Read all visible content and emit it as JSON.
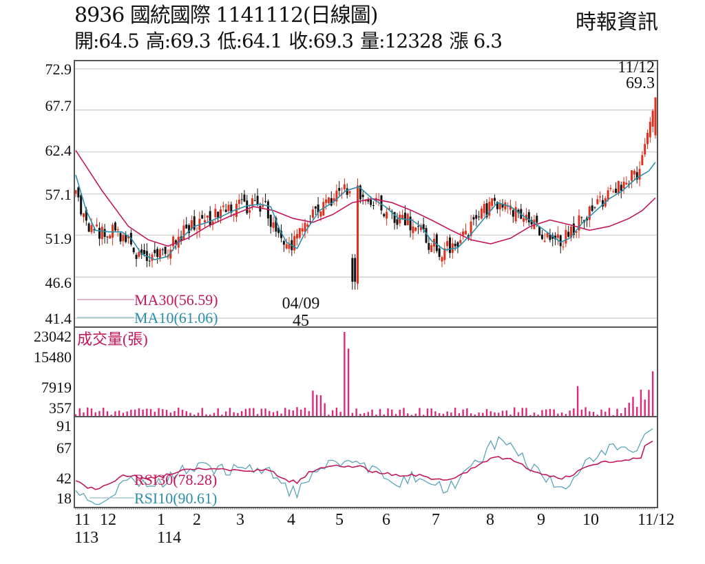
{
  "header": {
    "code": "8936",
    "name": "國統國際",
    "date": "1141112",
    "chart_kind": "(日線圖)",
    "title": "8936  國統國際 1141112(日線圖)",
    "brand": "時報資訊",
    "quote": {
      "open": "開:64.5",
      "high": "高:69.3",
      "low": "低:64.1",
      "close": "收:69.3",
      "volume": "量:12328",
      "change": "漲 6.3"
    }
  },
  "annotations": {
    "last_date": "11/12",
    "last_price": "69.3",
    "low_date": "04/09",
    "low_price": "45"
  },
  "legends": {
    "ma30": "MA30(56.59)",
    "ma10": "MA10(61.06)",
    "volume": "成交量(張)",
    "rsi30": "RSI30(78.28)",
    "rsi10": "RSI10(90.61)"
  },
  "colors": {
    "up": "#e0301e",
    "down": "#111111",
    "ma30": "#c2185b",
    "ma10": "#2a8fa8",
    "volume": "#e0287a",
    "grid": "#cccccc",
    "axis": "#555555"
  },
  "chart_data": [
    {
      "type": "candlestick",
      "title": "8936 國統國際 1141112(日線圖)",
      "ylabel": "",
      "yticks": [
        72.9,
        67.7,
        62.4,
        57.1,
        51.9,
        46.6,
        41.4
      ],
      "ylim": [
        41.4,
        72.9
      ],
      "grid": true,
      "last": {
        "date": "11/12",
        "open": 64.5,
        "high": 69.3,
        "low": 64.1,
        "close": 69.3,
        "volume": 12328,
        "change": 6.3
      },
      "period_low": {
        "date": "04/09",
        "value": 45
      },
      "series": [
        {
          "name": "MA30",
          "last": 56.59,
          "points": [
            [
              0,
              62.6
            ],
            [
              20,
              57.5
            ],
            [
              40,
              53.0
            ],
            [
              55,
              51.3
            ],
            [
              70,
              50.5
            ],
            [
              85,
              51.5
            ],
            [
              100,
              53.0
            ],
            [
              120,
              54.5
            ],
            [
              135,
              55.5
            ],
            [
              150,
              55.0
            ],
            [
              165,
              54.0
            ],
            [
              180,
              53.5
            ],
            [
              195,
              54.5
            ],
            [
              210,
              56.0
            ],
            [
              225,
              56.5
            ],
            [
              240,
              56.0
            ],
            [
              255,
              55.0
            ],
            [
              270,
              53.8
            ],
            [
              285,
              52.5
            ],
            [
              300,
              51.3
            ],
            [
              315,
              50.8
            ],
            [
              330,
              51.5
            ],
            [
              345,
              53.0
            ],
            [
              360,
              53.8
            ],
            [
              375,
              53.2
            ],
            [
              390,
              52.5
            ],
            [
              405,
              53.0
            ],
            [
              420,
              54.0
            ],
            [
              430,
              55.0
            ],
            [
              440,
              56.6
            ]
          ]
        },
        {
          "name": "MA10",
          "last": 61.06,
          "points": [
            [
              0,
              59.5
            ],
            [
              8,
              55.0
            ],
            [
              15,
              52.5
            ],
            [
              25,
              52.3
            ],
            [
              35,
              52.3
            ],
            [
              42,
              51.5
            ],
            [
              50,
              49.5
            ],
            [
              60,
              48.8
            ],
            [
              70,
              49.2
            ],
            [
              80,
              51.5
            ],
            [
              90,
              53.0
            ],
            [
              100,
              53.5
            ],
            [
              110,
              54.2
            ],
            [
              120,
              55.0
            ],
            [
              130,
              55.6
            ],
            [
              140,
              55.8
            ],
            [
              148,
              55.5
            ],
            [
              155,
              52.5
            ],
            [
              160,
              51.0
            ],
            [
              168,
              50.2
            ],
            [
              175,
              52.5
            ],
            [
              185,
              55.0
            ],
            [
              195,
              56.0
            ],
            [
              205,
              57.5
            ],
            [
              215,
              58.0
            ],
            [
              225,
              56.5
            ],
            [
              235,
              55.5
            ],
            [
              245,
              54.0
            ],
            [
              255,
              53.8
            ],
            [
              262,
              53.0
            ],
            [
              270,
              51.2
            ],
            [
              280,
              50.0
            ],
            [
              290,
              50.3
            ],
            [
              300,
              52.0
            ],
            [
              310,
              54.0
            ],
            [
              320,
              56.0
            ],
            [
              330,
              55.5
            ],
            [
              340,
              54.3
            ],
            [
              350,
              53.2
            ],
            [
              360,
              52.0
            ],
            [
              368,
              51.0
            ],
            [
              375,
              51.5
            ],
            [
              385,
              53.5
            ],
            [
              395,
              55.0
            ],
            [
              405,
              56.5
            ],
            [
              415,
              57.5
            ],
            [
              425,
              59.0
            ],
            [
              435,
              60.0
            ],
            [
              440,
              61.1
            ]
          ]
        }
      ],
      "x_months": [
        "11",
        "12",
        "1",
        "2",
        "3",
        "4",
        "5",
        "6",
        "7",
        "8",
        "9",
        "10",
        "11/12"
      ],
      "x_years": [
        "113",
        "114"
      ]
    },
    {
      "type": "bar",
      "title": "成交量(張)",
      "yticks": [
        23042,
        15480,
        7919,
        357
      ],
      "ylim": [
        357,
        23042
      ],
      "notable_values": [
        {
          "date": "04/09",
          "approx": 23042
        },
        {
          "date": "11/12",
          "value": 12328
        }
      ]
    },
    {
      "type": "line",
      "title": "RSI",
      "yticks": [
        91,
        67,
        42,
        18
      ],
      "ylim": [
        18,
        91
      ],
      "series": [
        {
          "name": "RSI30",
          "last": 78.28
        },
        {
          "name": "RSI10",
          "last": 90.61
        }
      ]
    }
  ]
}
